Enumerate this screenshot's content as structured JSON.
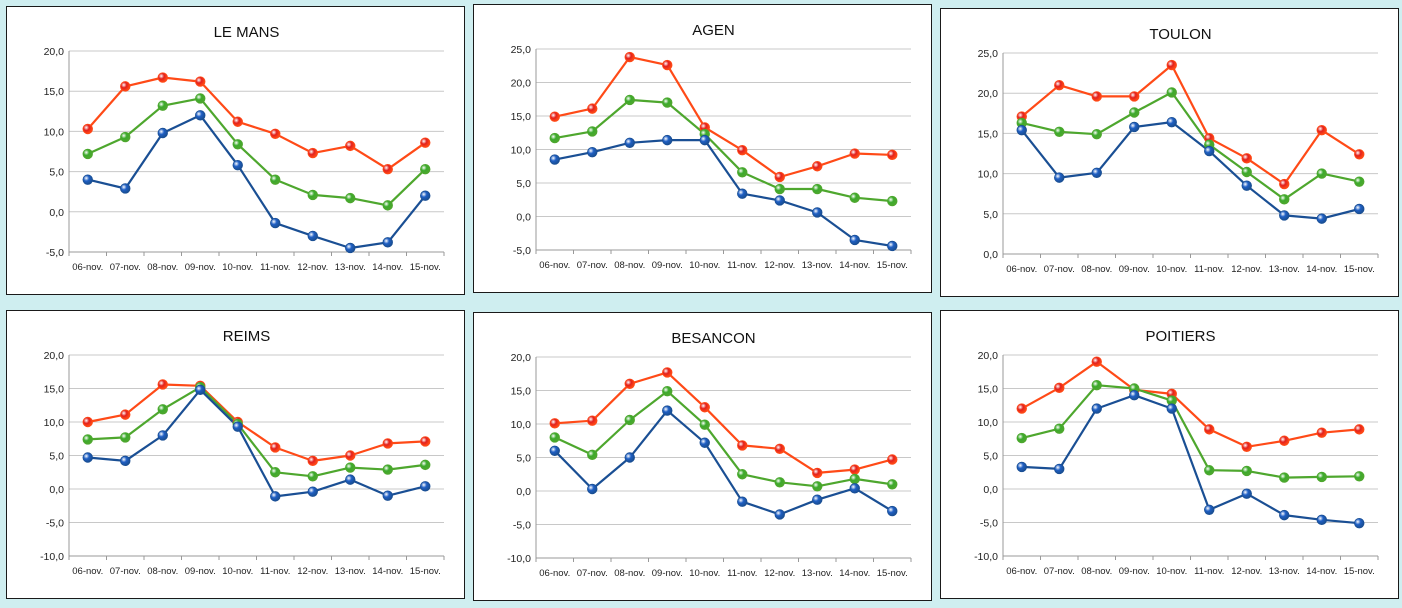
{
  "colors": {
    "high": "#ff4a17",
    "mid": "#4ea72e",
    "low": "#1a4f94",
    "high_marker": "#e3201c",
    "mid_marker": "#3caa2c",
    "low_marker": "#1f5fc4",
    "grid": "#c8c8c8",
    "axis": "#999999"
  },
  "chart_data": [
    {
      "type": "line",
      "title": "LE MANS",
      "categories": [
        "06-nov.",
        "07-nov.",
        "08-nov.",
        "09-nov.",
        "10-nov.",
        "11-nov.",
        "12-nov.",
        "13-nov.",
        "14-nov.",
        "15-nov."
      ],
      "ylim": [
        -5,
        20
      ],
      "yticks": [
        "-5,0",
        "0,0",
        "5,0",
        "10,0",
        "15,0",
        "20,0"
      ],
      "grid": true,
      "series": [
        {
          "key": "high",
          "values": [
            10.3,
            15.6,
            16.7,
            16.2,
            11.2,
            9.7,
            7.3,
            8.2,
            5.3,
            8.6
          ]
        },
        {
          "key": "mid",
          "values": [
            7.2,
            9.3,
            13.2,
            14.1,
            8.4,
            4.0,
            2.1,
            1.7,
            0.8,
            5.3
          ]
        },
        {
          "key": "low",
          "values": [
            4.0,
            2.9,
            9.8,
            12.0,
            5.8,
            -1.4,
            -3.0,
            -4.5,
            -3.8,
            2.0
          ]
        }
      ]
    },
    {
      "type": "line",
      "title": "AGEN",
      "categories": [
        "06-nov.",
        "07-nov.",
        "08-nov.",
        "09-nov.",
        "10-nov.",
        "11-nov.",
        "12-nov.",
        "13-nov.",
        "14-nov.",
        "15-nov."
      ],
      "ylim": [
        -5,
        25
      ],
      "yticks": [
        "-5,0",
        "0,0",
        "5,0",
        "10,0",
        "15,0",
        "20,0",
        "25,0"
      ],
      "grid": true,
      "series": [
        {
          "key": "high",
          "values": [
            14.9,
            16.1,
            23.8,
            22.6,
            13.3,
            9.9,
            5.9,
            7.5,
            9.4,
            9.2
          ]
        },
        {
          "key": "mid",
          "values": [
            11.7,
            12.7,
            17.4,
            17.0,
            12.3,
            6.6,
            4.1,
            4.1,
            2.8,
            2.3
          ]
        },
        {
          "key": "low",
          "values": [
            8.5,
            9.6,
            11.0,
            11.4,
            11.4,
            3.4,
            2.4,
            0.6,
            -3.5,
            -4.4
          ]
        }
      ]
    },
    {
      "type": "line",
      "title": "TOULON",
      "categories": [
        "06-nov.",
        "07-nov.",
        "08-nov.",
        "09-nov.",
        "10-nov.",
        "11-nov.",
        "12-nov.",
        "13-nov.",
        "14-nov.",
        "15-nov."
      ],
      "ylim": [
        0,
        25
      ],
      "yticks": [
        "0,0",
        "5,0",
        "10,0",
        "15,0",
        "20,0",
        "25,0"
      ],
      "grid": true,
      "series": [
        {
          "key": "high",
          "values": [
            17.1,
            21.0,
            19.6,
            19.6,
            23.5,
            14.4,
            11.9,
            8.7,
            15.4,
            12.4
          ]
        },
        {
          "key": "mid",
          "values": [
            16.3,
            15.2,
            14.9,
            17.6,
            20.1,
            13.6,
            10.2,
            6.8,
            10.0,
            9.0
          ]
        },
        {
          "key": "low",
          "values": [
            15.4,
            9.5,
            10.1,
            15.8,
            16.4,
            12.8,
            8.5,
            4.8,
            4.4,
            5.6
          ]
        }
      ]
    },
    {
      "type": "line",
      "title": "REIMS",
      "categories": [
        "06-nov.",
        "07-nov.",
        "08-nov.",
        "09-nov.",
        "10-nov.",
        "11-nov.",
        "12-nov.",
        "13-nov.",
        "14-nov.",
        "15-nov."
      ],
      "ylim": [
        -10,
        20
      ],
      "yticks": [
        "-10,0",
        "-5,0",
        "0,0",
        "5,0",
        "10,0",
        "15,0",
        "20,0"
      ],
      "grid": true,
      "series": [
        {
          "key": "high",
          "values": [
            10.0,
            11.1,
            15.6,
            15.4,
            10.0,
            6.2,
            4.2,
            5.0,
            6.8,
            7.1
          ]
        },
        {
          "key": "mid",
          "values": [
            7.4,
            7.7,
            11.9,
            15.2,
            9.7,
            2.5,
            1.9,
            3.2,
            2.9,
            3.6
          ]
        },
        {
          "key": "low",
          "values": [
            4.7,
            4.2,
            8.0,
            14.8,
            9.3,
            -1.1,
            -0.4,
            1.4,
            -1.0,
            0.4
          ]
        }
      ]
    },
    {
      "type": "line",
      "title": "BESANCON",
      "categories": [
        "06-nov.",
        "07-nov.",
        "08-nov.",
        "09-nov.",
        "10-nov.",
        "11-nov.",
        "12-nov.",
        "13-nov.",
        "14-nov.",
        "15-nov."
      ],
      "ylim": [
        -10,
        20
      ],
      "yticks": [
        "-10,0",
        "-5,0",
        "0,0",
        "5,0",
        "10,0",
        "15,0",
        "20,0"
      ],
      "grid": true,
      "series": [
        {
          "key": "high",
          "values": [
            10.1,
            10.5,
            16.0,
            17.7,
            12.5,
            6.8,
            6.3,
            2.7,
            3.2,
            4.7
          ]
        },
        {
          "key": "mid",
          "values": [
            8.0,
            5.4,
            10.6,
            14.9,
            9.9,
            2.5,
            1.3,
            0.7,
            1.8,
            1.0
          ]
        },
        {
          "key": "low",
          "values": [
            6.0,
            0.3,
            5.0,
            12.0,
            7.2,
            -1.6,
            -3.5,
            -1.3,
            0.4,
            -3.0
          ]
        }
      ]
    },
    {
      "type": "line",
      "title": "POITIERS",
      "categories": [
        "06-nov.",
        "07-nov.",
        "08-nov.",
        "09-nov.",
        "10-nov.",
        "11-nov.",
        "12-nov.",
        "13-nov.",
        "14-nov.",
        "15-nov."
      ],
      "ylim": [
        -10,
        20
      ],
      "yticks": [
        "-10,0",
        "-5,0",
        "0,0",
        "5,0",
        "10,0",
        "15,0",
        "20,0"
      ],
      "grid": true,
      "series": [
        {
          "key": "high",
          "values": [
            12.0,
            15.1,
            19.0,
            14.8,
            14.2,
            8.9,
            6.3,
            7.2,
            8.4,
            8.9
          ]
        },
        {
          "key": "mid",
          "values": [
            7.6,
            9.0,
            15.5,
            15.0,
            13.2,
            2.8,
            2.7,
            1.7,
            1.8,
            1.9
          ]
        },
        {
          "key": "low",
          "values": [
            3.3,
            3.0,
            12.0,
            14.0,
            12.0,
            -3.1,
            -0.7,
            -3.9,
            -4.6,
            -5.1
          ]
        }
      ]
    }
  ]
}
